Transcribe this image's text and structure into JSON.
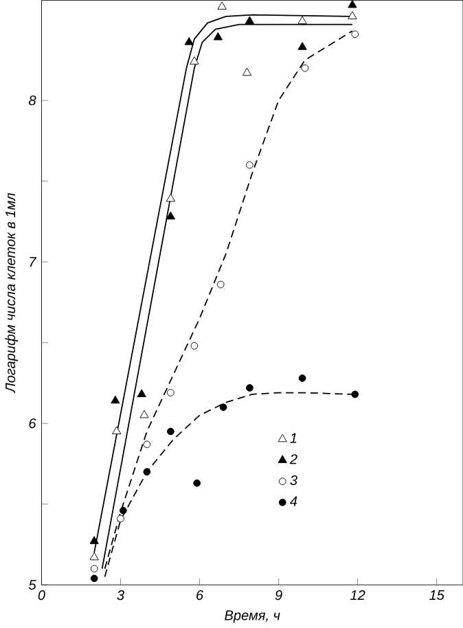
{
  "chart_data": {
    "type": "scatter",
    "xlabel": "Время, ч",
    "ylabel": "Логарифм числа клеток в 1мл",
    "xlim": [
      0,
      16
    ],
    "ylim": [
      5,
      8.62
    ],
    "xticks": [
      0,
      3,
      6,
      9,
      12,
      15
    ],
    "yticks": [
      5,
      {
        "value": 5.5,
        "label": null
      },
      6,
      {
        "value": 6.5,
        "label": null
      },
      7,
      {
        "value": 7.5,
        "label": null
      },
      8
    ],
    "grid": false,
    "legend": "bottom right",
    "series": [
      {
        "name": "1",
        "color": "#ffffff",
        "marker": "triangle",
        "x": [
          2.0,
          2.85,
          3.9,
          4.9,
          5.8,
          6.85,
          7.8,
          9.9,
          11.8
        ],
        "values": [
          5.17,
          5.95,
          6.05,
          7.39,
          8.24,
          8.58,
          8.17,
          8.49,
          8.52
        ]
      },
      {
        "name": "2",
        "color": "#000000",
        "marker": "triangle",
        "x": [
          2.0,
          2.8,
          3.8,
          4.9,
          5.6,
          6.7,
          7.9,
          9.9,
          11.8
        ],
        "values": [
          5.27,
          6.14,
          6.18,
          7.28,
          8.36,
          8.39,
          8.49,
          8.33,
          8.59
        ]
      },
      {
        "name": "3",
        "color": "#ffffff",
        "marker": "circle",
        "x": [
          2.0,
          3.0,
          4.0,
          4.9,
          5.8,
          6.8,
          7.9,
          10.0,
          11.9
        ],
        "values": [
          5.1,
          5.41,
          5.87,
          6.19,
          6.48,
          6.86,
          7.6,
          8.2,
          8.41
        ]
      },
      {
        "name": "4",
        "color": "#000000",
        "marker": "circle",
        "x": [
          2.0,
          3.1,
          4.0,
          4.9,
          5.9,
          6.9,
          7.9,
          9.9,
          11.9
        ],
        "values": [
          5.04,
          5.46,
          5.7,
          5.95,
          5.63,
          6.1,
          6.22,
          6.28,
          6.18
        ]
      },
      {
        "type": "line",
        "color": "#000000",
        "marker": "none",
        "line_style": "solid",
        "x": [
          2.0,
          5.5,
          5.8,
          6.3,
          7.0,
          8.0,
          11.8
        ],
        "values": [
          5.2,
          8.2,
          8.38,
          8.48,
          8.52,
          8.53,
          8.52
        ]
      },
      {
        "type": "line",
        "color": "#000000",
        "marker": "none",
        "line_style": "solid",
        "x": [
          2.3,
          5.8,
          6.1,
          6.6,
          7.5,
          11.8
        ],
        "values": [
          5.1,
          8.2,
          8.36,
          8.44,
          8.47,
          8.47
        ]
      },
      {
        "type": "line",
        "color": "#000000",
        "marker": "none",
        "line_style": "dashed",
        "x": [
          2.4,
          3.0,
          4.0,
          5.0,
          6.0,
          7.0,
          8.0,
          9.0,
          10.0,
          11.8
        ],
        "values": [
          5.1,
          5.45,
          5.95,
          6.3,
          6.65,
          7.05,
          7.55,
          8.0,
          8.25,
          8.43
        ]
      },
      {
        "type": "line",
        "color": "#000000",
        "marker": "none",
        "line_style": "dashed",
        "x": [
          2.4,
          3.0,
          4.0,
          5.0,
          6.0,
          7.0,
          8.0,
          9.0,
          10.0,
          11.8
        ],
        "values": [
          5.05,
          5.4,
          5.7,
          5.9,
          6.05,
          6.13,
          6.18,
          6.19,
          6.19,
          6.18
        ]
      }
    ]
  }
}
